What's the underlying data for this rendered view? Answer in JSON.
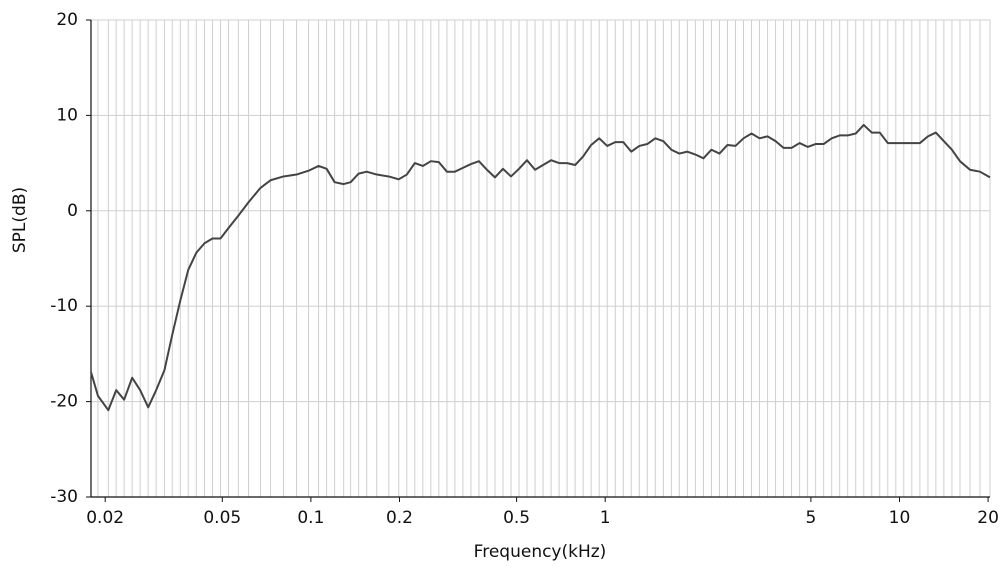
{
  "chart_data": {
    "type": "line",
    "xlabel": "Frequency(kHz)",
    "ylabel": "SPL(dB)",
    "xscale": "log",
    "grid": true,
    "xlim": [
      0.0179,
      20.3
    ],
    "ylim": [
      -30,
      20
    ],
    "xticks": [
      0.02,
      0.05,
      0.1,
      0.2,
      0.5,
      1,
      5,
      10,
      20
    ],
    "yticks": [
      -30,
      -20,
      -10,
      0,
      10,
      20
    ],
    "x": [
      0.0179,
      0.0189,
      0.0205,
      0.0218,
      0.0232,
      0.0247,
      0.0263,
      0.028,
      0.0298,
      0.0318,
      0.0338,
      0.036,
      0.0383,
      0.0408,
      0.0435,
      0.0463,
      0.0493,
      0.0525,
      0.0567,
      0.0614,
      0.0674,
      0.0729,
      0.0807,
      0.0894,
      0.0982,
      0.1062,
      0.1131,
      0.1204,
      0.1292,
      0.1365,
      0.1453,
      0.1548,
      0.1674,
      0.1839,
      0.1989,
      0.2118,
      0.2255,
      0.2401,
      0.2556,
      0.2721,
      0.2899,
      0.3085,
      0.3285,
      0.3498,
      0.3724,
      0.3965,
      0.4221,
      0.4494,
      0.4786,
      0.5095,
      0.5424,
      0.5777,
      0.615,
      0.6549,
      0.6972,
      0.7423,
      0.7904,
      0.8415,
      0.896,
      0.9541,
      1.016,
      1.082,
      1.152,
      1.226,
      1.306,
      1.39,
      1.48,
      1.576,
      1.678,
      1.786,
      1.902,
      2.025,
      2.157,
      2.296,
      2.445,
      2.603,
      2.771,
      2.951,
      3.142,
      3.345,
      3.562,
      3.792,
      4.037,
      4.298,
      4.577,
      4.873,
      5.188,
      5.524,
      5.882,
      6.262,
      6.668,
      7.099,
      7.559,
      8.048,
      8.568,
      9.124,
      9.714,
      10.34,
      11.01,
      11.73,
      12.49,
      13.29,
      14.15,
      15.07,
      16.05,
      17.36,
      18.77,
      20.3
    ],
    "series": [
      {
        "color": "#444444",
        "values": [
          -16.9,
          -19.4,
          -20.9,
          -18.8,
          -19.8,
          -17.5,
          -18.8,
          -20.6,
          -18.8,
          -16.7,
          -13.0,
          -9.4,
          -6.2,
          -4.4,
          -3.4,
          -2.9,
          -2.9,
          -1.8,
          -0.5,
          0.9,
          2.4,
          3.2,
          3.6,
          3.8,
          4.2,
          4.7,
          4.4,
          3.0,
          2.8,
          3.0,
          3.9,
          4.1,
          3.8,
          3.6,
          3.3,
          3.8,
          5.0,
          4.7,
          5.2,
          5.1,
          4.1,
          4.1,
          4.5,
          4.9,
          5.2,
          4.3,
          3.5,
          4.4,
          3.6,
          4.4,
          5.3,
          4.3,
          4.8,
          5.3,
          5.0,
          5.0,
          4.8,
          5.7,
          6.9,
          7.6,
          6.8,
          7.2,
          7.2,
          6.2,
          6.8,
          7.0,
          7.6,
          7.3,
          6.4,
          6.0,
          6.2,
          5.9,
          5.5,
          6.4,
          6.0,
          6.9,
          6.8,
          7.6,
          8.1,
          7.6,
          7.8,
          7.3,
          6.6,
          6.6,
          7.1,
          6.7,
          7.0,
          7.0,
          7.6,
          7.9,
          7.9,
          8.1,
          9.0,
          8.2,
          8.2,
          7.1,
          7.1,
          7.1,
          7.1,
          7.1,
          7.8,
          8.2,
          7.3,
          6.4,
          5.2,
          4.3,
          4.1,
          3.5
        ]
      }
    ]
  }
}
